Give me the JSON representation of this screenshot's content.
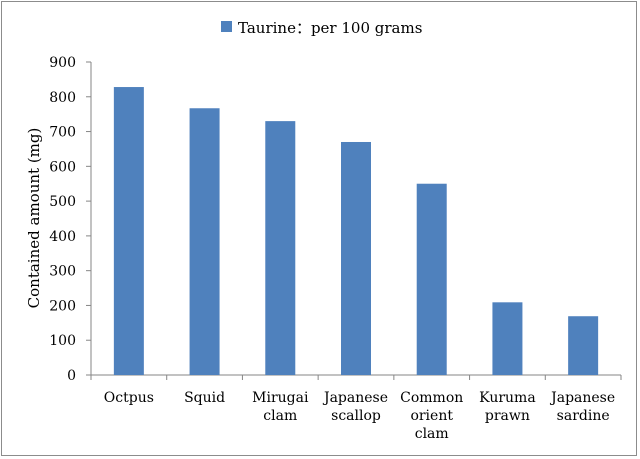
{
  "chart_data": {
    "type": "bar",
    "title": "",
    "xlabel": "",
    "ylabel": "Contained amount (mg)",
    "ylim": [
      0,
      900
    ],
    "yticks": [
      0,
      100,
      200,
      300,
      400,
      500,
      600,
      700,
      800,
      900
    ],
    "grid": false,
    "legend_position": "top",
    "categories": [
      [
        "Octpus"
      ],
      [
        "Squid"
      ],
      [
        "Mirugai",
        "clam"
      ],
      [
        "Japanese",
        "scallop"
      ],
      [
        "Common",
        "orient",
        "clam"
      ],
      [
        "Kuruma",
        "prawn"
      ],
      [
        "Japanese",
        "sardine"
      ]
    ],
    "series": [
      {
        "name": "Taurine：per 100 grams",
        "color": "#4f81bd",
        "values": [
          828,
          767,
          730,
          670,
          550,
          209,
          169
        ]
      }
    ]
  }
}
